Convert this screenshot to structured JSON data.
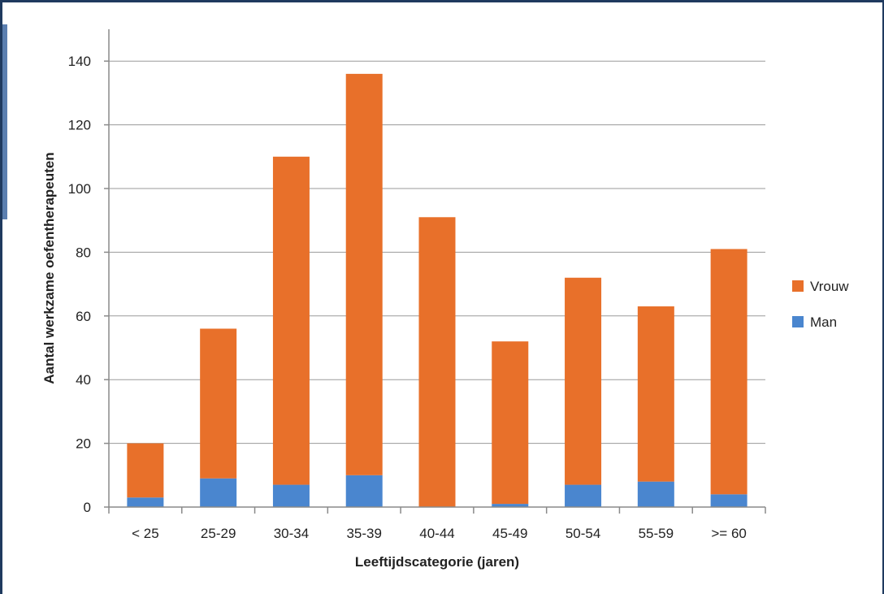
{
  "chart_data": {
    "type": "bar",
    "stacked": true,
    "title": "",
    "xlabel": "Leeftijdscategorie (jaren)",
    "ylabel": "Aantal werkzame oefentherapeuten",
    "ylim": [
      0,
      150
    ],
    "yticks": [
      0,
      20,
      40,
      60,
      80,
      100,
      120,
      140
    ],
    "grid": true,
    "legend_position": "right",
    "categories": [
      "< 25",
      "25-29",
      "30-34",
      "35-39",
      "40-44",
      "45-49",
      "50-54",
      "55-59",
      ">= 60"
    ],
    "series": [
      {
        "name": "Man",
        "color": "#4a86cf",
        "values": [
          3,
          9,
          7,
          10,
          0,
          1,
          7,
          8,
          4
        ]
      },
      {
        "name": "Vrouw",
        "color": "#e8702a",
        "values": [
          17,
          47,
          103,
          126,
          91,
          51,
          65,
          55,
          77
        ]
      }
    ]
  }
}
